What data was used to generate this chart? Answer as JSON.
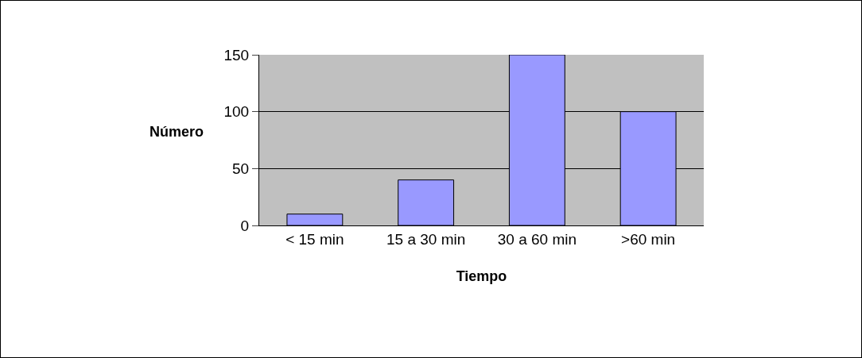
{
  "chart_data": {
    "type": "bar",
    "xlabel": "Tiempo",
    "ylabel": "Número",
    "categories": [
      "< 15 min",
      "15 a 30 min",
      "30 a 60 min",
      ">60 min"
    ],
    "values": [
      10,
      40,
      150,
      100
    ],
    "color": "#9999ff",
    "ylim": [
      0,
      150
    ],
    "yticks": [
      0,
      50,
      100,
      150
    ],
    "grid": "y"
  }
}
